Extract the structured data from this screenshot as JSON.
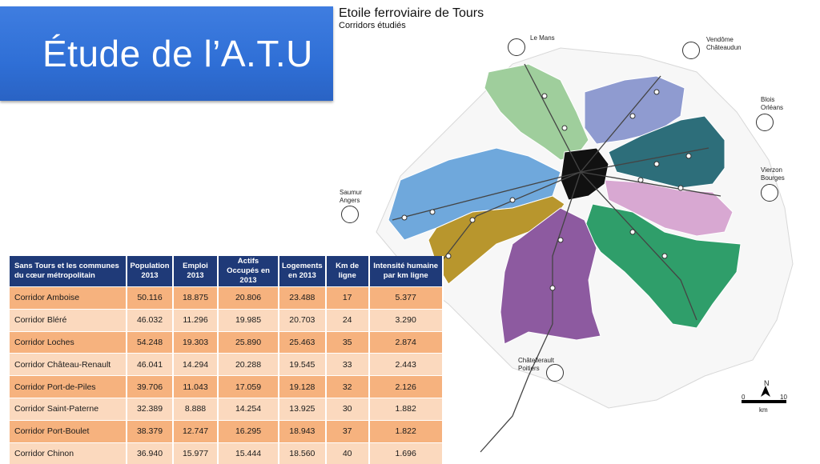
{
  "slide": {
    "title": "Étude de l’A.T.U"
  },
  "map": {
    "title": "Etoile ferroviaire de Tours",
    "subtitle": "Corridors étudiés",
    "cities": {
      "le_mans": "Le Mans",
      "vendome": "Vendôme",
      "chateaudun": "Châteaudun",
      "blois": "Blois",
      "orleans": "Orléans",
      "vierzon": "Vierzon",
      "bourges": "Bourges",
      "saumur": "Saumur",
      "angers": "Angers",
      "chatellerault": "Châtellerault",
      "poitiers": "Poitiers"
    },
    "scale": {
      "zero": "0",
      "ten": "10",
      "unit": "km"
    },
    "north": "N",
    "colors": {
      "amboise": "#2d6e7a",
      "blere": "#d8a8d2",
      "loches": "#2f9e6a",
      "chateau_renault": "#8f9bd0",
      "port_de_piles": "#8d5aa0",
      "saint_paterne": "#9fce9c",
      "port_boulet": "#b8962d",
      "chinon": "#6fa8dc",
      "tours": "#111111"
    }
  },
  "table": {
    "headers": [
      "Sans Tours et les communes du cœur métropolitain",
      "Population 2013",
      "Emploi 2013",
      "Actifs Occupés en 2013",
      "Logements en 2013",
      "Km de ligne",
      "Intensité humaine par km ligne"
    ],
    "rows": [
      [
        "Corridor Amboise",
        "50.116",
        "18.875",
        "20.806",
        "23.488",
        "17",
        "5.377"
      ],
      [
        "Corridor Bléré",
        "46.032",
        "11.296",
        "19.985",
        "20.703",
        "24",
        "3.290"
      ],
      [
        "Corridor Loches",
        "54.248",
        "19.303",
        "25.890",
        "25.463",
        "35",
        "2.874"
      ],
      [
        "Corridor Château-Renault",
        "46.041",
        "14.294",
        "20.288",
        "19.545",
        "33",
        "2.443"
      ],
      [
        "Corridor Port-de-Piles",
        "39.706",
        "11.043",
        "17.059",
        "19.128",
        "32",
        "2.126"
      ],
      [
        "Corridor Saint-Paterne",
        "32.389",
        "8.888",
        "14.254",
        "13.925",
        "30",
        "1.882"
      ],
      [
        "Corridor Port-Boulet",
        "38.379",
        "12.747",
        "16.295",
        "18.943",
        "37",
        "1.822"
      ],
      [
        "Corridor Chinon",
        "36.940",
        "15.977",
        "15.444",
        "18.560",
        "40",
        "1.696"
      ]
    ]
  }
}
